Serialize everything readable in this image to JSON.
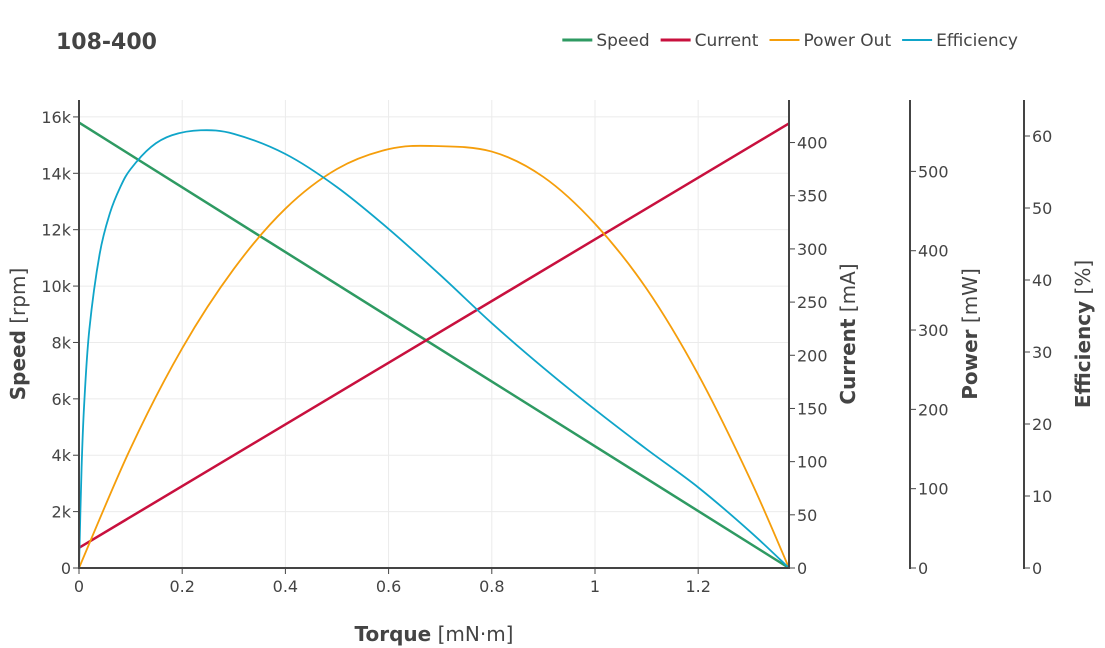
{
  "chart_data": {
    "type": "line",
    "title": "108-400",
    "x": {
      "label": "Torque",
      "unit": "[mN·m]",
      "range": [
        0,
        1.376
      ],
      "ticks": [
        0,
        0.2,
        0.4,
        0.6,
        0.8,
        1,
        1.2
      ],
      "tick_labels": [
        "0",
        "0.2",
        "0.4",
        "0.6",
        "0.8",
        "1",
        "1.2"
      ]
    },
    "axes": {
      "speed": {
        "label": "Speed",
        "unit": "[rpm]",
        "range": [
          0,
          16600
        ],
        "ticks": [
          0,
          2000,
          4000,
          6000,
          8000,
          10000,
          12000,
          14000,
          16000
        ],
        "tick_labels": [
          "0",
          "2k",
          "4k",
          "6k",
          "8k",
          "10k",
          "12k",
          "14k",
          "16k"
        ]
      },
      "current": {
        "label": "Current",
        "unit": "[mA]",
        "range": [
          0,
          440
        ],
        "ticks": [
          0,
          50,
          100,
          150,
          200,
          250,
          300,
          350,
          400
        ],
        "tick_labels": [
          "0",
          "50",
          "100",
          "150",
          "200",
          "250",
          "300",
          "350",
          "400"
        ]
      },
      "power": {
        "label": "Power",
        "unit": "[mW]",
        "range": [
          0,
          590
        ],
        "ticks": [
          0,
          100,
          200,
          300,
          400,
          500
        ],
        "tick_labels": [
          "0",
          "100",
          "200",
          "300",
          "400",
          "500"
        ]
      },
      "efficiency": {
        "label": "Efficiency",
        "unit": "[%]",
        "range": [
          0,
          65
        ],
        "ticks": [
          0,
          10,
          20,
          30,
          40,
          50,
          60
        ],
        "tick_labels": [
          "0",
          "10",
          "20",
          "30",
          "40",
          "50",
          "60"
        ]
      }
    },
    "series": [
      {
        "name": "Speed",
        "axis": "speed",
        "color": "#2e9a62",
        "x": [
          0,
          1.376
        ],
        "y": [
          15800,
          0
        ]
      },
      {
        "name": "Current",
        "axis": "current",
        "color": "#c8103e",
        "x": [
          0,
          1.376
        ],
        "y": [
          19,
          418
        ]
      },
      {
        "name": "Power Out",
        "axis": "power",
        "color": "#f59e0b",
        "x": [
          0,
          0.1,
          0.2,
          0.3,
          0.4,
          0.5,
          0.6,
          0.688,
          0.8,
          0.9,
          1.0,
          1.1,
          1.2,
          1.3,
          1.376
        ],
        "y": [
          0,
          151,
          277,
          377,
          453,
          503,
          528,
          532,
          525,
          493,
          434,
          352,
          244,
          113,
          0
        ]
      },
      {
        "name": "Efficiency",
        "axis": "efficiency",
        "color": "#0fa5c9",
        "x": [
          0,
          0.005,
          0.01,
          0.02,
          0.04,
          0.06,
          0.08,
          0.1,
          0.14,
          0.18,
          0.236,
          0.3,
          0.4,
          0.5,
          0.6,
          0.7,
          0.8,
          0.9,
          1.0,
          1.1,
          1.2,
          1.3,
          1.376
        ],
        "y": [
          0,
          13.9,
          22.7,
          33.1,
          43.6,
          49.3,
          52.9,
          55.4,
          58.5,
          60.1,
          60.8,
          60.3,
          57.5,
          52.9,
          47.1,
          40.7,
          34.0,
          27.8,
          22.0,
          16.5,
          11.2,
          5.1,
          0
        ]
      }
    ],
    "legend": {
      "placement": "top-right",
      "items": [
        "Speed",
        "Current",
        "Power Out",
        "Efficiency"
      ]
    },
    "grid": true
  }
}
